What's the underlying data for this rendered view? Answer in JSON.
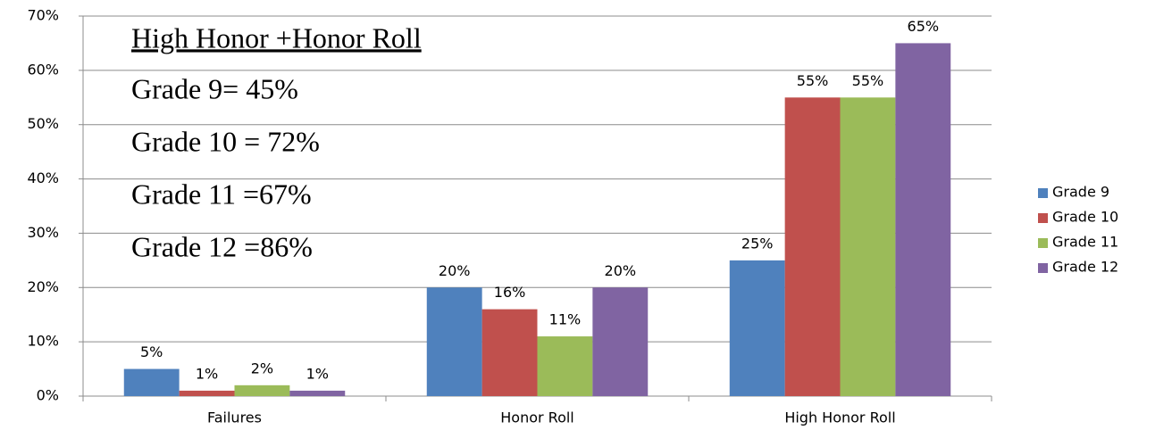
{
  "chart_data": {
    "type": "bar",
    "categories": [
      "Failures",
      "Honor Roll",
      "High Honor Roll"
    ],
    "series": [
      {
        "name": "Grade 9",
        "color": "#4f81bd",
        "values": [
          5,
          20,
          25
        ],
        "value_labels": [
          "5%",
          "20%",
          "25%"
        ]
      },
      {
        "name": "Grade 10",
        "color": "#c0504d",
        "values": [
          1,
          16,
          55
        ],
        "value_labels": [
          "1%",
          "16%",
          "55%"
        ]
      },
      {
        "name": "Grade 11",
        "color": "#9bbb59",
        "values": [
          2,
          11,
          55
        ],
        "value_labels": [
          "2%",
          "11%",
          "55%"
        ]
      },
      {
        "name": "Grade 12",
        "color": "#8064a2",
        "values": [
          1,
          20,
          65
        ],
        "value_labels": [
          "1%",
          "20%",
          "65%"
        ]
      }
    ],
    "ylim": [
      0,
      70
    ],
    "yticks": [
      {
        "value": 0,
        "label": "0%"
      },
      {
        "value": 10,
        "label": "10%"
      },
      {
        "value": 20,
        "label": "20%"
      },
      {
        "value": 30,
        "label": "30%"
      },
      {
        "value": 40,
        "label": "40%"
      },
      {
        "value": 50,
        "label": "50%"
      },
      {
        "value": 60,
        "label": "60%"
      },
      {
        "value": 70,
        "label": "70%"
      }
    ],
    "grid": true,
    "legend": "right",
    "annotations": [
      "High Honor +Honor Roll",
      "Grade 9= 45%",
      "Grade 10 = 72%",
      "Grade 11 =67%",
      "Grade 12 =86%"
    ]
  }
}
